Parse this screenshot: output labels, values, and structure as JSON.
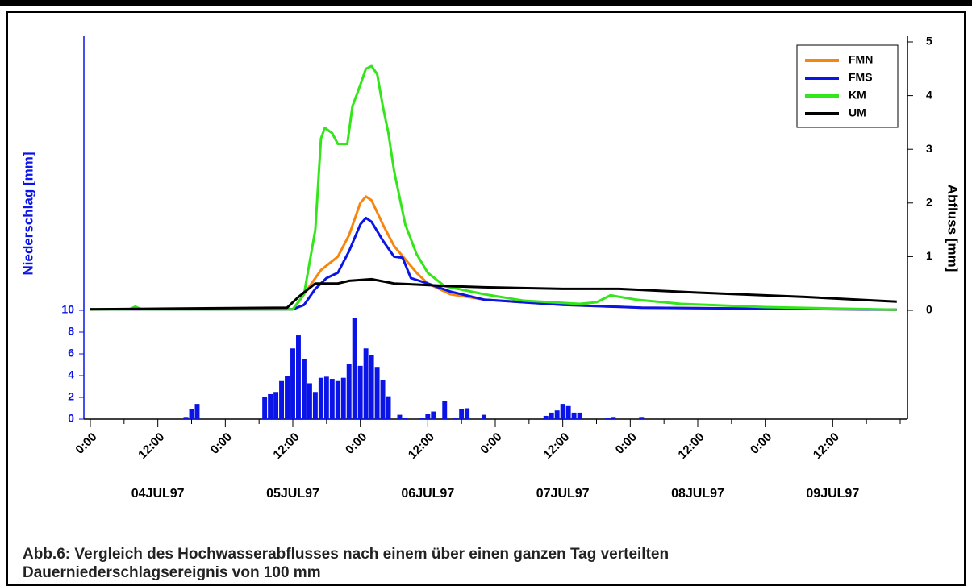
{
  "chart_data": [
    {
      "type": "bar",
      "ylabel": "Niederschlag [mm]",
      "color": "#0a14e6",
      "x": [
        17,
        18,
        19,
        31,
        32,
        33,
        34,
        35,
        36,
        37,
        38,
        39,
        40,
        41,
        42,
        43,
        44,
        45,
        46,
        47,
        48,
        49,
        50,
        51,
        52,
        53,
        55,
        56,
        59,
        60,
        61,
        63,
        65,
        66,
        67,
        70,
        81,
        82,
        83,
        84,
        85,
        86,
        87,
        92,
        93,
        98
      ],
      "values": [
        0.2,
        0.9,
        1.4,
        2.0,
        2.3,
        2.5,
        3.5,
        4.0,
        6.5,
        7.7,
        5.5,
        3.3,
        2.5,
        3.8,
        3.9,
        3.7,
        3.5,
        3.8,
        5.1,
        9.3,
        4.9,
        6.5,
        5.9,
        4.8,
        3.6,
        2.1,
        0.4,
        0.1,
        0.1,
        0.5,
        0.7,
        1.7,
        0.1,
        0.9,
        1.0,
        0.4,
        0.3,
        0.6,
        0.8,
        1.4,
        1.2,
        0.6,
        0.6,
        0.1,
        0.2,
        0.2
      ],
      "ylim": [
        0,
        10
      ],
      "yticks": [
        0,
        2,
        4,
        6,
        8,
        10
      ],
      "xlim": [
        0,
        144
      ],
      "xticks": [
        {
          "value": 0,
          "label": "0:00"
        },
        {
          "value": 12,
          "label": "12:00"
        },
        {
          "value": 24,
          "label": "0:00"
        },
        {
          "value": 36,
          "label": "12:00"
        },
        {
          "value": 48,
          "label": "0:00"
        },
        {
          "value": 60,
          "label": "12:00"
        },
        {
          "value": 72,
          "label": "0:00"
        },
        {
          "value": 84,
          "label": "12:00"
        },
        {
          "value": 96,
          "label": "0:00"
        },
        {
          "value": 108,
          "label": "12:00"
        },
        {
          "value": 120,
          "label": "0:00"
        },
        {
          "value": 132,
          "label": "12:00"
        }
      ],
      "xminorticks": [
        6,
        18,
        30,
        42,
        54,
        66,
        78,
        90,
        102,
        114,
        126,
        138,
        144
      ],
      "date_labels": [
        {
          "value": 12,
          "label": "04JUL97"
        },
        {
          "value": 36,
          "label": "05JUL97"
        },
        {
          "value": 60,
          "label": "06JUL97"
        },
        {
          "value": 84,
          "label": "07JUL97"
        },
        {
          "value": 108,
          "label": "08JUL97"
        },
        {
          "value": 132,
          "label": "09JUL97"
        }
      ]
    },
    {
      "type": "line",
      "ylabel": "Abfluss [mm]",
      "xlim": [
        0,
        144
      ],
      "y2lim": [
        0,
        5
      ],
      "y2ticks": [
        0,
        1,
        2,
        3,
        4,
        5
      ],
      "legend": "upper right",
      "series": [
        {
          "name": "FMN",
          "color": "#f7860f",
          "x": [
            0,
            36,
            37,
            39,
            41,
            44,
            46,
            48,
            49,
            50,
            52,
            54,
            56,
            58,
            60,
            64,
            70,
            84,
            98,
            143.4
          ],
          "values": [
            0.02,
            0.02,
            0.15,
            0.45,
            0.75,
            1.0,
            1.4,
            2.0,
            2.12,
            2.05,
            1.6,
            1.2,
            0.95,
            0.7,
            0.5,
            0.3,
            0.2,
            0.1,
            0.05,
            0.01
          ]
        },
        {
          "name": "FMS",
          "color": "#0a14e6",
          "x": [
            0,
            36,
            38,
            40,
            42,
            44,
            46,
            48,
            49,
            50,
            52,
            54,
            55.5,
            57,
            60,
            64,
            70,
            84,
            98,
            143.4
          ],
          "values": [
            0.02,
            0.02,
            0.1,
            0.4,
            0.6,
            0.7,
            1.1,
            1.6,
            1.72,
            1.65,
            1.3,
            1.0,
            0.98,
            0.6,
            0.5,
            0.35,
            0.2,
            0.1,
            0.05,
            0.01
          ]
        },
        {
          "name": "KM",
          "color": "#33e619",
          "x": [
            0,
            7,
            8,
            9,
            36,
            38,
            40,
            41,
            41.7,
            43,
            44,
            45.7,
            46.6,
            48,
            49,
            50,
            51,
            52,
            53,
            54,
            56,
            58,
            60,
            63,
            70,
            77,
            87,
            90,
            92.5,
            97,
            105,
            120,
            143.4
          ],
          "values": [
            0.02,
            0.02,
            0.07,
            0.02,
            0.02,
            0.3,
            1.5,
            3.2,
            3.4,
            3.3,
            3.1,
            3.1,
            3.8,
            4.2,
            4.5,
            4.55,
            4.4,
            3.8,
            3.3,
            2.6,
            1.6,
            1.05,
            0.7,
            0.45,
            0.3,
            0.18,
            0.12,
            0.15,
            0.28,
            0.2,
            0.12,
            0.06,
            0.01
          ]
        },
        {
          "name": "UM",
          "color": "#000000",
          "x": [
            0,
            35,
            37,
            40,
            44,
            46,
            50,
            54,
            58,
            64,
            70,
            84,
            94,
            108,
            127,
            143.4
          ],
          "values": [
            0.02,
            0.05,
            0.25,
            0.5,
            0.5,
            0.55,
            0.58,
            0.5,
            0.48,
            0.45,
            0.43,
            0.4,
            0.4,
            0.33,
            0.25,
            0.16
          ]
        }
      ]
    },
    {
      "type": "caption",
      "lines": [
        "Abb.6: Vergleich des Hochwasserabflusses nach einem über einen ganzen Tag verteilten",
        "Dauerniederschlagsereignis von 100 mm"
      ]
    }
  ]
}
